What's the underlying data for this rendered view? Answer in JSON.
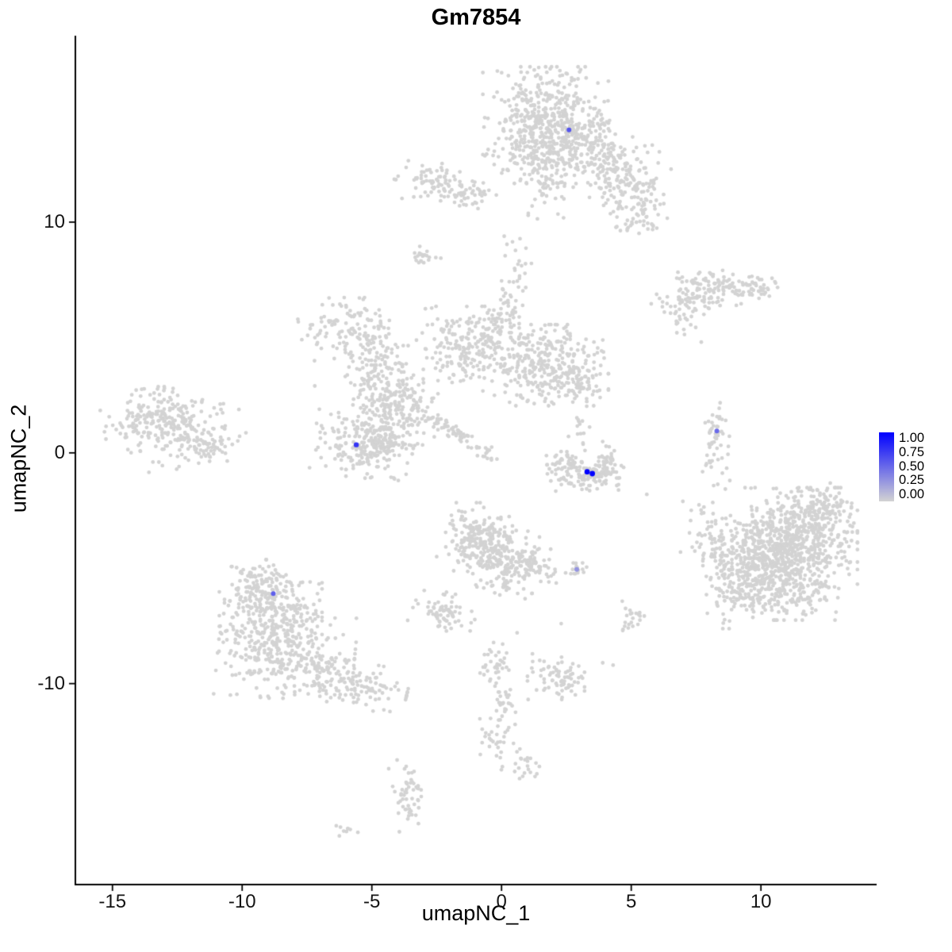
{
  "title": "Gm7854",
  "chart_data": {
    "type": "scatter",
    "title": "Gm7854",
    "xlabel": "umapNC_1",
    "ylabel": "umapNC_2",
    "xlim": [
      -16.43,
      14.46
    ],
    "ylim": [
      -18.71,
      18.08
    ],
    "x_ticks": [
      -15,
      -10,
      -5,
      0,
      5,
      10
    ],
    "y_ticks": [
      -10,
      0,
      10
    ],
    "grid": false,
    "background_points_color": "#D3D3D3",
    "point_color_low": "#D3D3D3",
    "point_color_high": "#0000FF",
    "point_radius": 2.4,
    "seed": 42,
    "legend": {
      "position": "right",
      "labels": [
        "1.00",
        "0.75",
        "0.50",
        "0.25",
        "0.00"
      ],
      "gradient_top": "#0000FF",
      "gradient_bottom": "#D3D3D3"
    },
    "clusters": [
      [
        1.7,
        14.2,
        1.1,
        1.15,
        0,
        560
      ],
      [
        3.8,
        12.8,
        1.15,
        0.75,
        -35,
        210
      ],
      [
        5.0,
        11.3,
        0.75,
        0.55,
        -30,
        90
      ],
      [
        1.6,
        12.0,
        0.4,
        0.95,
        0,
        70
      ],
      [
        5.4,
        10.1,
        0.45,
        0.4,
        0,
        35
      ],
      [
        -2.6,
        11.7,
        0.7,
        0.4,
        -10,
        75
      ],
      [
        -1.3,
        11.3,
        0.5,
        0.35,
        -15,
        45
      ],
      [
        -3.0,
        8.4,
        0.3,
        0.25,
        0,
        22
      ],
      [
        0.5,
        7.3,
        0.35,
        0.95,
        0,
        35
      ],
      [
        7.3,
        6.7,
        0.7,
        0.35,
        15,
        75
      ],
      [
        8.7,
        7.2,
        0.9,
        0.35,
        -10,
        95
      ],
      [
        9.9,
        7.1,
        0.3,
        0.25,
        0,
        20
      ],
      [
        7.0,
        5.9,
        0.25,
        0.35,
        0,
        15
      ],
      [
        -6.0,
        5.4,
        0.8,
        0.7,
        10,
        120
      ],
      [
        -4.7,
        4.3,
        0.5,
        0.5,
        0,
        45
      ],
      [
        -1.3,
        4.7,
        0.9,
        0.75,
        0,
        200
      ],
      [
        0.1,
        5.8,
        0.5,
        0.5,
        0,
        55
      ],
      [
        1.7,
        3.8,
        1.1,
        0.8,
        0,
        320
      ],
      [
        2.9,
        2.9,
        0.4,
        0.4,
        0,
        45
      ],
      [
        -4.1,
        2.1,
        0.75,
        0.8,
        0,
        220
      ],
      [
        -5.2,
        3.3,
        0.5,
        0.5,
        0,
        50
      ],
      [
        -1.95,
        1.0,
        0.8,
        0.13,
        -35,
        65
      ],
      [
        -0.5,
        -0.1,
        0.25,
        0.15,
        -30,
        10
      ],
      [
        -13.4,
        1.5,
        0.9,
        0.6,
        10,
        160
      ],
      [
        -12.0,
        0.8,
        0.95,
        0.6,
        15,
        140
      ],
      [
        -11.2,
        0.3,
        0.4,
        0.3,
        0,
        25
      ],
      [
        -5.4,
        0.3,
        0.9,
        0.65,
        -15,
        200
      ],
      [
        -4.5,
        0.6,
        0.35,
        0.35,
        0,
        60
      ],
      [
        2.5,
        -0.55,
        0.35,
        0.4,
        0,
        45
      ],
      [
        3.3,
        -1.0,
        0.55,
        0.3,
        0,
        100
      ],
      [
        4.2,
        -0.5,
        0.3,
        0.45,
        0,
        45
      ],
      [
        3.0,
        0.7,
        0.25,
        0.6,
        0,
        18
      ],
      [
        8.3,
        0.3,
        0.25,
        0.85,
        0,
        55
      ],
      [
        11.3,
        -3.6,
        1.1,
        0.95,
        0,
        560
      ],
      [
        10.8,
        -5.6,
        1.0,
        0.75,
        0,
        320
      ],
      [
        9.7,
        -4.7,
        0.6,
        0.9,
        0,
        150
      ],
      [
        12.4,
        -2.3,
        0.5,
        0.45,
        0,
        80
      ],
      [
        8.2,
        -3.9,
        0.4,
        0.9,
        10,
        90
      ],
      [
        9.0,
        -6.3,
        0.5,
        0.6,
        0,
        65
      ],
      [
        -0.9,
        -3.7,
        0.6,
        0.7,
        0,
        190
      ],
      [
        0.2,
        -4.7,
        0.7,
        0.7,
        -30,
        190
      ],
      [
        1.5,
        -5.0,
        0.45,
        0.25,
        -15,
        40
      ],
      [
        2.8,
        -5.1,
        0.25,
        0.18,
        0,
        15
      ],
      [
        -2.2,
        -6.9,
        0.55,
        0.45,
        -20,
        70
      ],
      [
        5.1,
        -7.2,
        0.3,
        0.35,
        0,
        22
      ],
      [
        -8.9,
        -6.8,
        0.9,
        0.85,
        0,
        280
      ],
      [
        -8.3,
        -8.7,
        1.2,
        0.9,
        -5,
        320
      ],
      [
        -5.8,
        -10.0,
        1.0,
        0.45,
        -12,
        130
      ],
      [
        -9.4,
        -5.4,
        0.4,
        0.35,
        0,
        40
      ],
      [
        -0.3,
        -9.1,
        0.35,
        0.4,
        0,
        35
      ],
      [
        0.1,
        -10.7,
        0.2,
        0.6,
        0,
        30
      ],
      [
        -0.2,
        -12.5,
        0.3,
        0.5,
        0,
        28
      ],
      [
        0.9,
        -13.5,
        0.5,
        0.3,
        -30,
        22
      ],
      [
        2.1,
        -9.7,
        0.5,
        0.45,
        0,
        75
      ],
      [
        -3.6,
        -14.8,
        0.28,
        0.7,
        10,
        55
      ],
      [
        -6.2,
        -16.4,
        0.3,
        0.12,
        0,
        9
      ]
    ],
    "singles": [
      [
        7.8,
        6.0
      ],
      [
        7.7,
        4.8
      ],
      [
        8.8,
        -1.2
      ],
      [
        6.9,
        -4.3
      ],
      [
        3.9,
        -9.1
      ],
      [
        4.3,
        -9.2
      ],
      [
        3.8,
        2.4
      ],
      [
        -2.5,
        -4.5
      ],
      [
        2.3,
        -7.4
      ],
      [
        0.6,
        -7.8
      ],
      [
        5.6,
        -1.8
      ],
      [
        -7.2,
        2.9
      ]
    ],
    "expressing_cells": [
      {
        "x": 2.6,
        "y": 14.0,
        "value": 0.6,
        "r": 3.0
      },
      {
        "x": -5.6,
        "y": 0.35,
        "value": 0.75,
        "r": 3.2
      },
      {
        "x": 3.3,
        "y": -0.82,
        "value": 1.0,
        "r": 3.4
      },
      {
        "x": 3.5,
        "y": -0.9,
        "value": 1.0,
        "r": 3.4
      },
      {
        "x": 8.3,
        "y": 0.95,
        "value": 0.5,
        "r": 3.0
      },
      {
        "x": 2.9,
        "y": -5.05,
        "value": 0.3,
        "r": 3.0
      },
      {
        "x": -8.8,
        "y": -6.1,
        "value": 0.55,
        "r": 3.0
      }
    ]
  }
}
